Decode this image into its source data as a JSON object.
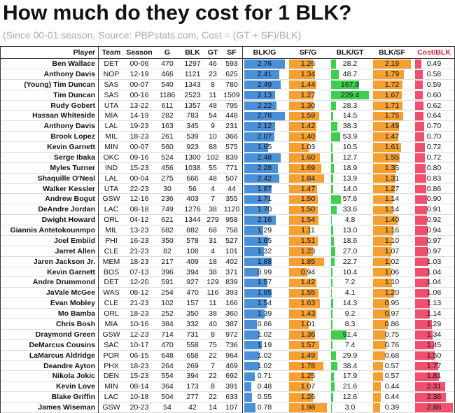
{
  "header": {
    "title": "How much do they cost for 1 BLK?",
    "subtitle": "(Since 00-01 season, Source: PBPstats.com, Cost = (GT + SF)/BLK)"
  },
  "table": {
    "columns": [
      "Player",
      "Team",
      "Season",
      "G",
      "BLK",
      "GT",
      "SF",
      "BLK/G",
      "SF/G",
      "BLK/GT",
      "BLK/SF",
      "Cost/BLK"
    ],
    "rows": [
      [
        "Ben Wallace",
        "DET",
        "00-06",
        "470",
        "1297",
        "46",
        "593",
        "2.76",
        "1.26",
        "28.2",
        "2.19",
        "0.49"
      ],
      [
        "Anthony Davis",
        "NOP",
        "12-19",
        "466",
        "1121",
        "23",
        "625",
        "2.41",
        "1.34",
        "48.7",
        "1.79",
        "0.58"
      ],
      [
        "(Young) Tim Duncan",
        "SAS",
        "00-07",
        "540",
        "1343",
        "8",
        "780",
        "2.49",
        "1.44",
        "167.9",
        "1.72",
        "0.59"
      ],
      [
        "Tim Duncan",
        "SAS",
        "00-16",
        "1186",
        "2523",
        "11",
        "1509",
        "2.13",
        "1.27",
        "229.4",
        "1.67",
        "0.60"
      ],
      [
        "Rudy Gobert",
        "UTA",
        "13-22",
        "611",
        "1357",
        "48",
        "795",
        "2.22",
        "1.30",
        "28.3",
        "1.71",
        "0.62"
      ],
      [
        "Hassan Whiteside",
        "MIA",
        "14-19",
        "282",
        "783",
        "54",
        "448",
        "2.78",
        "1.59",
        "14.5",
        "1.75",
        "0.64"
      ],
      [
        "Anthony Davis",
        "LAL",
        "19-23",
        "163",
        "345",
        "9",
        "231",
        "2.12",
        "1.42",
        "38.3",
        "1.49",
        "0.70"
      ],
      [
        "Brook Lopez",
        "MIL",
        "18-23",
        "261",
        "539",
        "10",
        "366",
        "2.07",
        "1.40",
        "53.9",
        "1.47",
        "0.70"
      ],
      [
        "Kevin Garnett",
        "MIN",
        "00-07",
        "560",
        "923",
        "88",
        "575",
        "1.65",
        "1.03",
        "10.5",
        "1.61",
        "0.72"
      ],
      [
        "Serge Ibaka",
        "OKC",
        "09-16",
        "524",
        "1300",
        "102",
        "839",
        "2.48",
        "1.60",
        "12.7",
        "1.55",
        "0.72"
      ],
      [
        "Myles Turner",
        "IND",
        "15-23",
        "456",
        "1038",
        "55",
        "771",
        "2.28",
        "1.69",
        "18.9",
        "1.35",
        "0.80"
      ],
      [
        "Shaquille O'Neal",
        "LAL",
        "00-04",
        "275",
        "666",
        "48",
        "507",
        "2.42",
        "1.84",
        "13.9",
        "1.31",
        "0.83"
      ],
      [
        "Walker Kessler",
        "UTA",
        "22-23",
        "30",
        "56",
        "4",
        "44",
        "1.87",
        "1.47",
        "14.0",
        "1.27",
        "0.86"
      ],
      [
        "Andrew Bogut",
        "GSW",
        "12-16",
        "236",
        "403",
        "7",
        "355",
        "1.71",
        "1.50",
        "57.6",
        "1.14",
        "0.90"
      ],
      [
        "DeAndre Jordan",
        "LAC",
        "08-18",
        "749",
        "1276",
        "38",
        "1120",
        "1.70",
        "1.50",
        "33.6",
        "1.14",
        "0.91"
      ],
      [
        "Dwight Howard",
        "ORL",
        "04-12",
        "621",
        "1344",
        "279",
        "958",
        "2.16",
        "1.54",
        "4.8",
        "1.40",
        "0.92"
      ],
      [
        "Giannis Antetokounmpo",
        "MIL",
        "13-23",
        "682",
        "882",
        "68",
        "758",
        "1.29",
        "1.11",
        "13.0",
        "1.16",
        "0.94"
      ],
      [
        "Joel Embiid",
        "PHI",
        "16-23",
        "350",
        "578",
        "31",
        "527",
        "1.65",
        "1.51",
        "18.6",
        "1.10",
        "0.97"
      ],
      [
        "Jarret Allen",
        "CLE",
        "21-23",
        "82",
        "108",
        "4",
        "101",
        "1.32",
        "1.23",
        "27.0",
        "1.07",
        "0.97"
      ],
      [
        "Jaren Jackson Jr.",
        "MEM",
        "18-23",
        "217",
        "409",
        "18",
        "402",
        "1.88",
        "1.85",
        "22.7",
        "1.02",
        "1.03"
      ],
      [
        "Kevin Garnett",
        "BOS",
        "07-13",
        "396",
        "394",
        "38",
        "371",
        "0.99",
        "0.94",
        "10.4",
        "1.06",
        "1.04"
      ],
      [
        "Andre Drummond",
        "DET",
        "12-20",
        "591",
        "927",
        "129",
        "839",
        "1.57",
        "1.42",
        "7.2",
        "1.10",
        "1.04"
      ],
      [
        "JaVale McGee",
        "WAS",
        "08-12",
        "254",
        "470",
        "116",
        "393",
        "1.85",
        "1.55",
        "4.1",
        "1.20",
        "1.08"
      ],
      [
        "Evan Mobley",
        "CLE",
        "21-23",
        "102",
        "157",
        "11",
        "166",
        "1.54",
        "1.63",
        "14.3",
        "0.95",
        "1.13"
      ],
      [
        "Mo Bamba",
        "ORL",
        "18-23",
        "252",
        "350",
        "38",
        "360",
        "1.39",
        "1.43",
        "9.2",
        "0.97",
        "1.14"
      ],
      [
        "Chris Bosh",
        "MIA",
        "10-16",
        "384",
        "332",
        "40",
        "387",
        "0.86",
        "1.01",
        "8.3",
        "0.86",
        "1.29"
      ],
      [
        "Draymond Green",
        "GSW",
        "12-23",
        "714",
        "731",
        "8",
        "972",
        "1.02",
        "1.36",
        "91.4",
        "0.75",
        "1.34"
      ],
      [
        "DeMarcus Cousins",
        "SAC",
        "10-17",
        "470",
        "558",
        "75",
        "736",
        "1.19",
        "1.57",
        "7.4",
        "0.76",
        "1.45"
      ],
      [
        "LaMarcus Aldridge",
        "POR",
        "06-15",
        "648",
        "658",
        "22",
        "964",
        "1.02",
        "1.49",
        "29.9",
        "0.68",
        "1.50"
      ],
      [
        "Deandre Ayton",
        "PHX",
        "18-23",
        "264",
        "269",
        "7",
        "469",
        "1.02",
        "1.78",
        "38.4",
        "0.57",
        "1.77"
      ],
      [
        "Nikola Jokic",
        "DEN",
        "15-23",
        "554",
        "394",
        "22",
        "692",
        "0.71",
        "1.25",
        "17.9",
        "0.57",
        "1.81"
      ],
      [
        "Kevin Love",
        "MIN",
        "08-14",
        "364",
        "173",
        "8",
        "391",
        "0.48",
        "1.07",
        "21.6",
        "0.44",
        "2.31"
      ],
      [
        "Blake Griffin",
        "LAC",
        "10-18",
        "504",
        "277",
        "22",
        "633",
        "0.55",
        "1.26",
        "12.6",
        "0.44",
        "2.36"
      ],
      [
        "James Wiseman",
        "GSW",
        "20-23",
        "54",
        "42",
        "14",
        "107",
        "0.78",
        "1.98",
        "3.0",
        "0.39",
        "2.88"
      ]
    ]
  }
}
